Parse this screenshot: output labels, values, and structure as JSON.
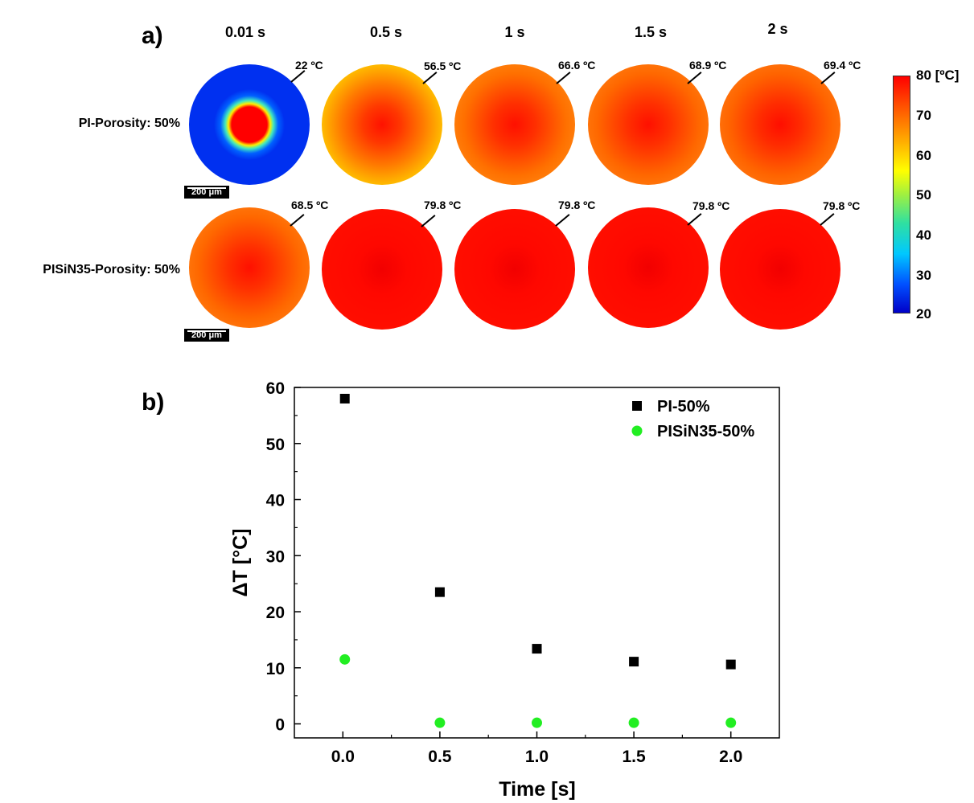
{
  "panel_a": {
    "label": "a)",
    "times": [
      "0.01 s",
      "0.5 s",
      "1 s",
      "1.5 s",
      "2 s"
    ],
    "rows": [
      {
        "label": "PI-Porosity: 50%",
        "temps": [
          "22 ºC",
          "56.5 ºC",
          "66.6 ºC",
          "68.9 ºC",
          "69.4 ºC"
        ]
      },
      {
        "label": "PISiN35-Porosity: 50%",
        "temps": [
          "68.5 ºC",
          "79.8 ºC",
          "79.8 ºC",
          "79.8 ºC",
          "79.8 ºC"
        ]
      }
    ],
    "scalebar": "200 μm",
    "colorbar": {
      "max_label": "80 [ºC]",
      "ticks": [
        "70",
        "60",
        "50",
        "40",
        "30",
        "20"
      ],
      "colors": {
        "low": "#0000c8",
        "mid": "#ffff00",
        "high": "#ff0000"
      }
    }
  },
  "panel_b": {
    "label": "b)"
  },
  "chart_data": {
    "type": "scatter",
    "xlabel": "Time [s]",
    "ylabel": "ΔT [°C]",
    "xlim": [
      -0.25,
      2.25
    ],
    "ylim": [
      -2.5,
      60
    ],
    "xticks": [
      "0.0",
      "0.5",
      "1.0",
      "1.5",
      "2.0"
    ],
    "yticks": [
      "0",
      "10",
      "20",
      "30",
      "40",
      "50",
      "60"
    ],
    "legend_position": "top-right",
    "series": [
      {
        "name": "PI-50%",
        "marker": "square",
        "color": "#000000",
        "x": [
          0.01,
          0.5,
          1.0,
          1.5,
          2.0
        ],
        "y": [
          58,
          23.5,
          13.4,
          11.1,
          10.6
        ]
      },
      {
        "name": "PISiN35-50%",
        "marker": "circle",
        "color": "#22ee22",
        "x": [
          0.01,
          0.5,
          1.0,
          1.5,
          2.0
        ],
        "y": [
          11.5,
          0.2,
          0.2,
          0.2,
          0.2
        ]
      }
    ]
  }
}
